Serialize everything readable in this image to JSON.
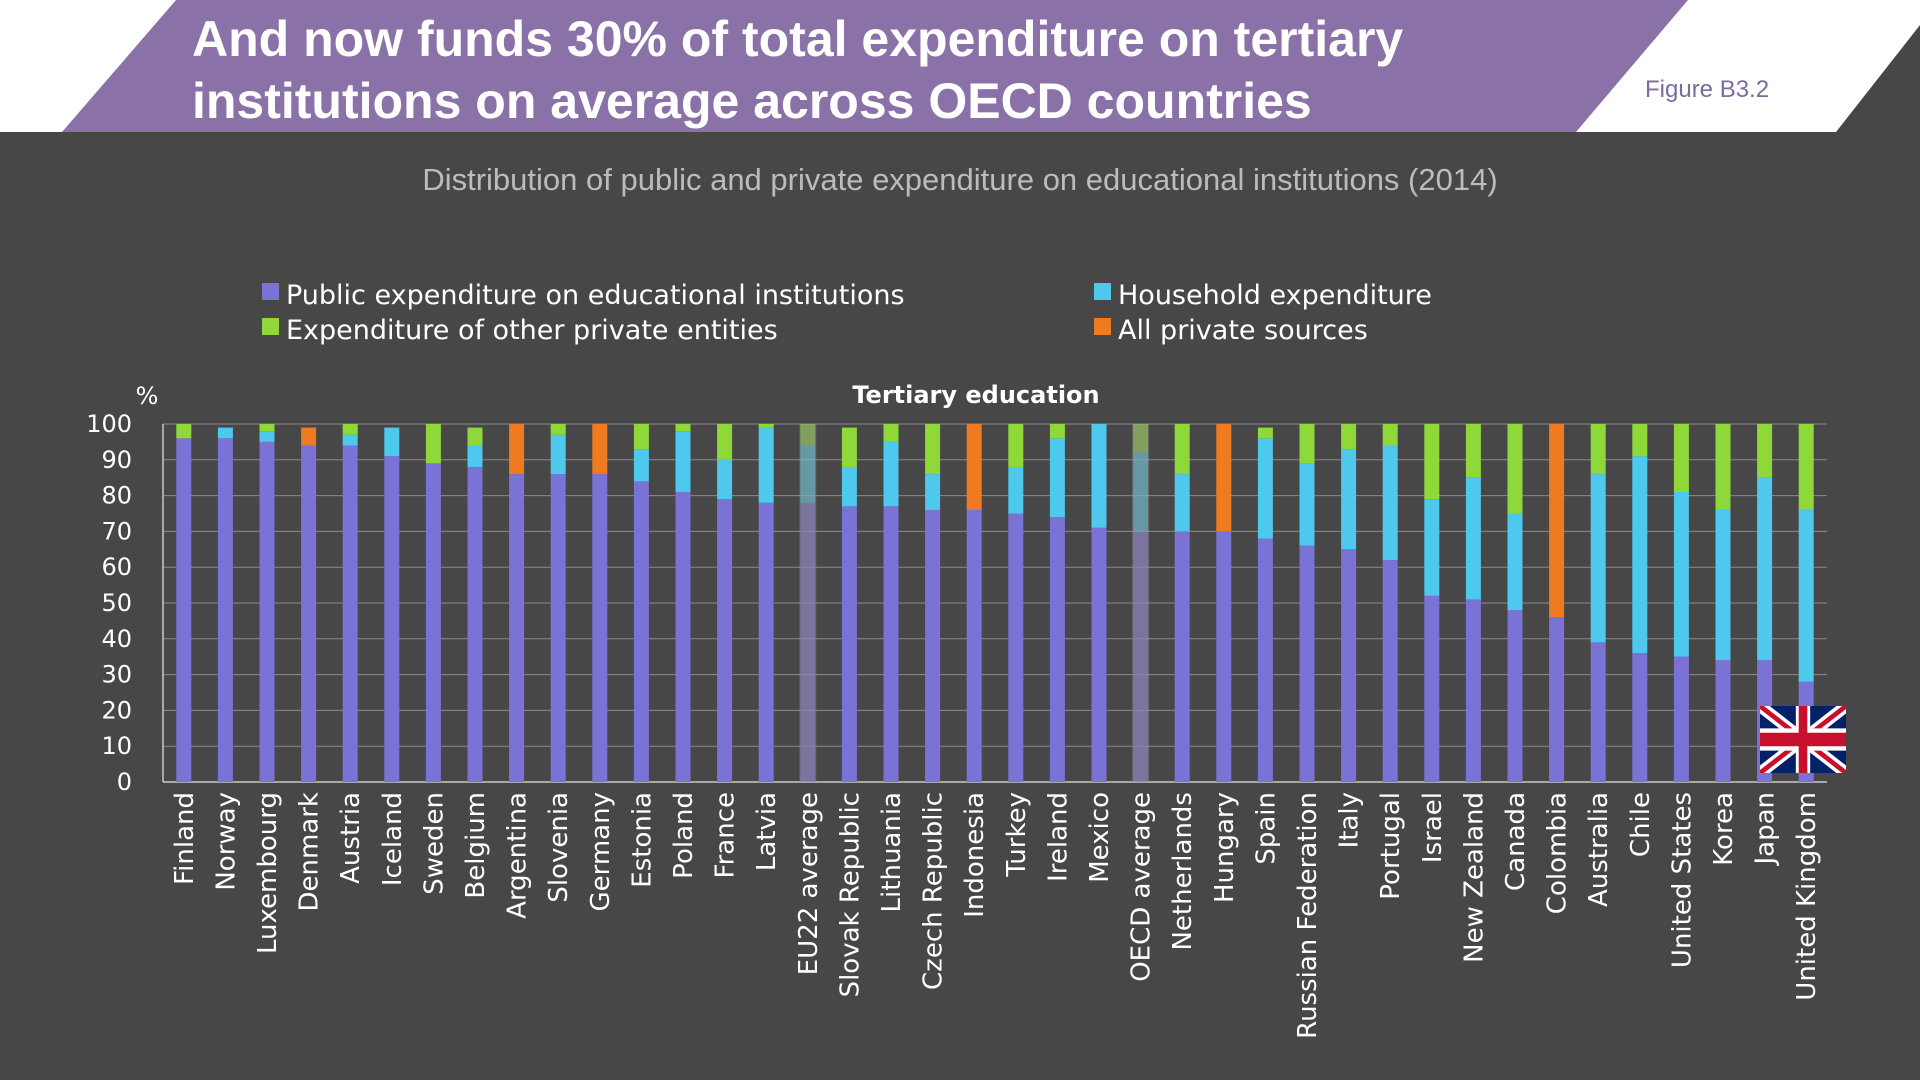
{
  "header": {
    "title": "And now funds 30% of total expenditure on tertiary institutions on average across OECD countries",
    "figure_label": "Figure B3.2",
    "band_color": "#8a72a8"
  },
  "subtitle": "Distribution of public and private expenditure on educational institutions (2014)",
  "legend": [
    {
      "label": "Public expenditure on educational institutions",
      "color": "#7b72d6"
    },
    {
      "label": "Household expenditure",
      "color": "#4ec8ec"
    },
    {
      "label": "Expenditure of other private entities",
      "color": "#8ed83a"
    },
    {
      "label": "All private sources",
      "color": "#f07a20"
    }
  ],
  "flag_icon": "united-kingdom-flag-icon",
  "chart_data": {
    "type": "bar",
    "stacked": true,
    "title": "Tertiary education",
    "ylabel": "%",
    "ylim": [
      0,
      100
    ],
    "yticks": [
      0,
      10,
      20,
      30,
      40,
      50,
      60,
      70,
      80,
      90,
      100
    ],
    "grid": true,
    "legend_position": "top",
    "categories": [
      "Finland",
      "Norway",
      "Luxembourg",
      "Denmark",
      "Austria",
      "Iceland",
      "Sweden",
      "Belgium",
      "Argentina",
      "Slovenia",
      "Germany",
      "Estonia",
      "Poland",
      "France",
      "Latvia",
      "EU22 average",
      "Slovak Republic",
      "Lithuania",
      "Czech Republic",
      "Indonesia",
      "Turkey",
      "Ireland",
      "Mexico",
      "OECD average",
      "Netherlands",
      "Hungary",
      "Spain",
      "Russian Federation",
      "Italy",
      "Portugal",
      "Israel",
      "New Zealand",
      "Canada",
      "Colombia",
      "Australia",
      "Chile",
      "United States",
      "Korea",
      "Japan",
      "United Kingdom"
    ],
    "highlighted_categories": [
      "EU22 average",
      "OECD average"
    ],
    "series": [
      {
        "name": "Public expenditure on educational institutions",
        "color": "#7b72d6",
        "values": [
          96,
          96,
          95,
          94,
          94,
          91,
          89,
          88,
          86,
          86,
          86,
          84,
          81,
          79,
          78,
          78,
          77,
          77,
          76,
          76,
          75,
          74,
          71,
          70,
          70,
          70,
          68,
          66,
          65,
          62,
          52,
          51,
          48,
          46,
          39,
          36,
          35,
          34,
          34,
          28
        ]
      },
      {
        "name": "Household expenditure",
        "color": "#4ec8ec",
        "values": [
          0,
          3,
          3,
          0,
          3,
          8,
          0,
          6,
          0,
          11,
          0,
          9,
          17,
          11,
          21,
          16,
          11,
          18,
          10,
          0,
          13,
          22,
          29,
          22,
          16,
          0,
          28,
          23,
          28,
          32,
          27,
          34,
          27,
          0,
          47,
          55,
          46,
          42,
          51,
          48
        ]
      },
      {
        "name": "Expenditure of other private entities",
        "color": "#8ed83a",
        "values": [
          4,
          0,
          2,
          0,
          3,
          0,
          11,
          5,
          0,
          3,
          0,
          7,
          2,
          10,
          1,
          6,
          11,
          5,
          14,
          0,
          12,
          4,
          0,
          8,
          14,
          0,
          3,
          11,
          7,
          6,
          21,
          15,
          25,
          0,
          14,
          9,
          19,
          24,
          15,
          24
        ]
      },
      {
        "name": "All private sources",
        "color": "#f07a20",
        "values": [
          0,
          0,
          0,
          5,
          0,
          0,
          0,
          0,
          14,
          0,
          14,
          0,
          0,
          0,
          0,
          0,
          0,
          0,
          0,
          24,
          0,
          0,
          0,
          0,
          0,
          30,
          0,
          0,
          0,
          0,
          0,
          0,
          0,
          54,
          0,
          0,
          0,
          0,
          0,
          0
        ]
      }
    ]
  }
}
